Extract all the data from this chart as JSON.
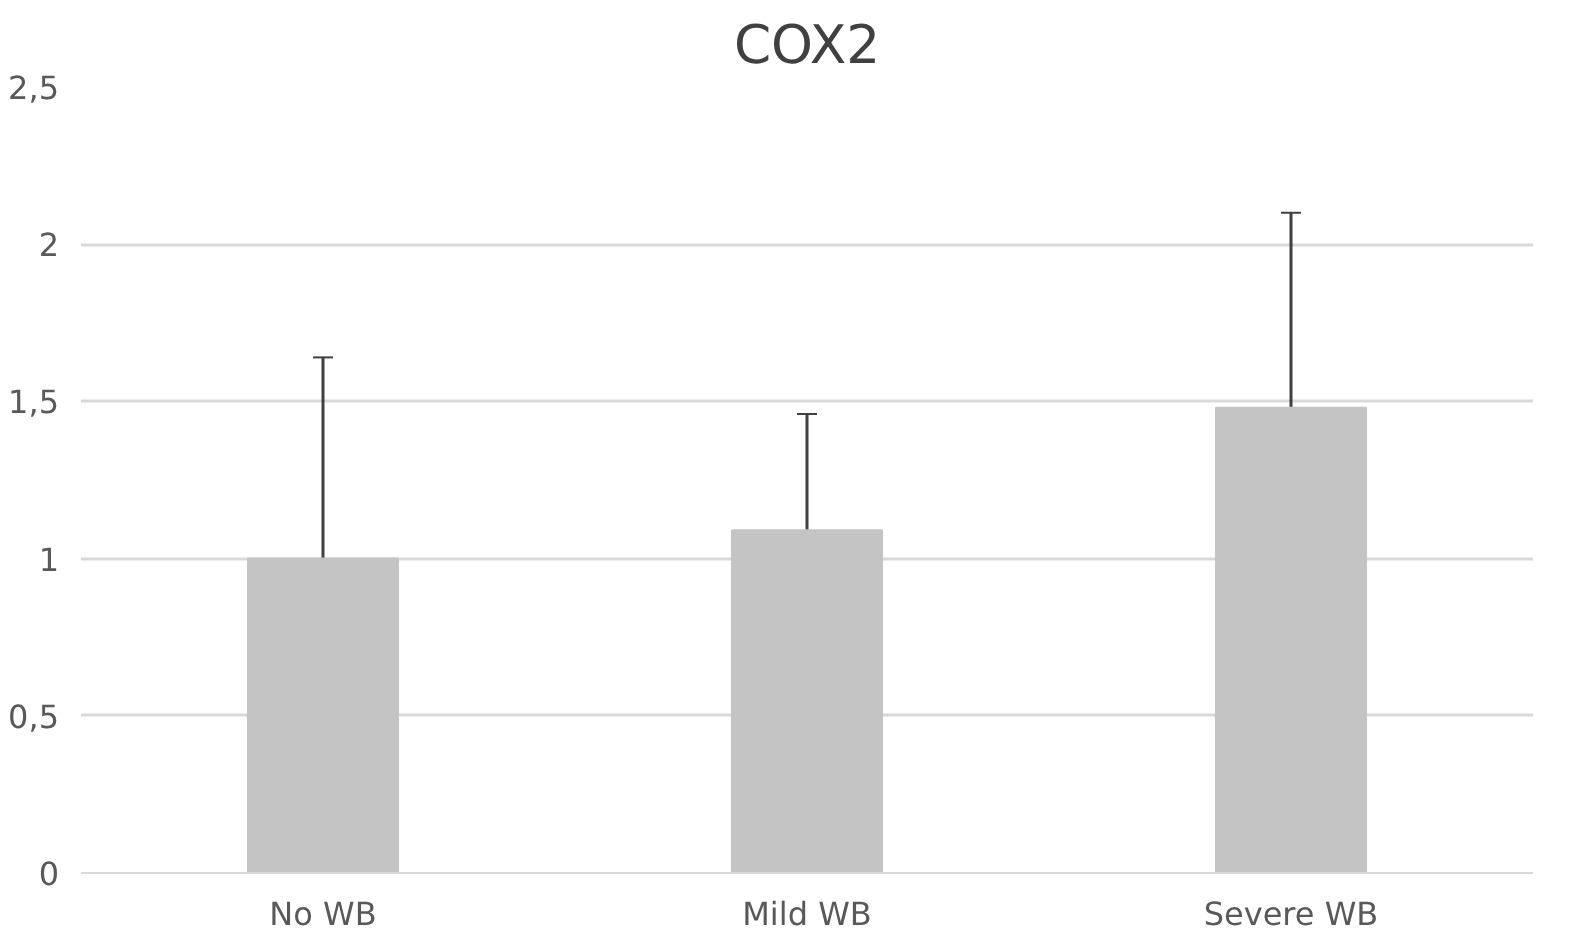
{
  "chart_data": {
    "type": "bar",
    "title": "COX2",
    "categories": [
      "No WB",
      "Mild WB",
      "Severe WB"
    ],
    "values": [
      1.0,
      1.09,
      1.48
    ],
    "errors": [
      [
        1.0,
        1.64
      ],
      [
        1.09,
        1.46
      ],
      [
        1.48,
        2.1
      ]
    ],
    "color": "#c4c4c4",
    "ylim": [
      0,
      2.5
    ],
    "yticks": [
      0,
      {
        "value": 0.5,
        "label": "0,5"
      },
      1,
      {
        "value": 1.5,
        "label": "1,5"
      },
      2,
      {
        "value": 2.5,
        "label": "2,5"
      }
    ],
    "grid": "y"
  }
}
